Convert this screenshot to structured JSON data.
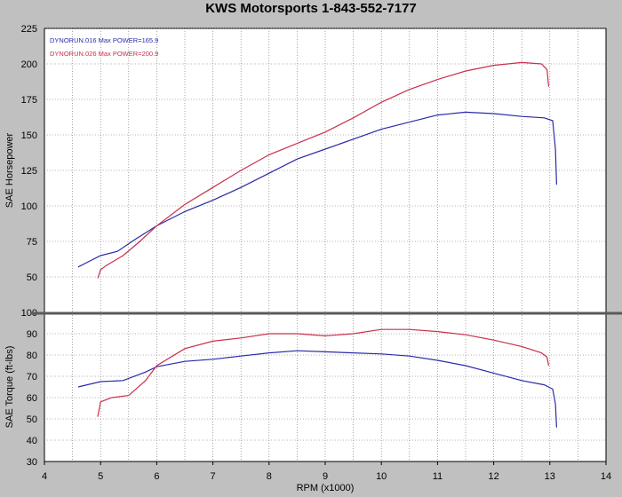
{
  "title": "KWS Motorsports  1-843-552-7177",
  "chart_data": [
    {
      "type": "line",
      "name": "horsepower",
      "ylabel": "SAE Horsepower",
      "ylim": [
        25,
        225
      ],
      "yticks": [
        50,
        75,
        100,
        125,
        150,
        175,
        200,
        225
      ],
      "xlim": [
        4,
        14
      ],
      "grid": true,
      "legend_position": "top-left",
      "series": [
        {
          "name": "DYNORUN.016  Max POWER=165.9",
          "color": "#2a2aa8",
          "x": [
            4.6,
            4.8,
            5.0,
            5.3,
            5.6,
            6.0,
            6.5,
            7.0,
            7.5,
            8.0,
            8.5,
            9.0,
            9.5,
            10.0,
            10.5,
            11.0,
            11.5,
            12.0,
            12.5,
            12.9,
            13.05,
            13.1,
            13.12
          ],
          "y": [
            57,
            61,
            65,
            68,
            76,
            86,
            96,
            104,
            113,
            123,
            133,
            140,
            147,
            154,
            159,
            164,
            166,
            165,
            163,
            162,
            160,
            140,
            115
          ]
        },
        {
          "name": "DYNORUN.026  Max POWER=200.9",
          "color": "#c8304a",
          "x": [
            4.95,
            5.0,
            5.1,
            5.4,
            5.7,
            6.0,
            6.5,
            7.0,
            7.5,
            8.0,
            8.5,
            9.0,
            9.5,
            10.0,
            10.5,
            11.0,
            11.5,
            12.0,
            12.5,
            12.85,
            12.95,
            12.98
          ],
          "y": [
            49,
            55,
            58,
            65,
            75,
            86,
            101,
            113,
            125,
            136,
            144,
            152,
            162,
            173,
            182,
            189,
            195,
            199,
            201,
            200,
            196,
            184
          ]
        }
      ]
    },
    {
      "type": "line",
      "name": "torque",
      "xlabel": "RPM (x1000)",
      "ylabel": "SAE Torque (ft-lbs)",
      "ylim": [
        30,
        100
      ],
      "yticks": [
        30,
        40,
        50,
        60,
        70,
        80,
        90,
        100
      ],
      "xlim": [
        4,
        14
      ],
      "xticks": [
        4,
        5,
        6,
        7,
        8,
        9,
        10,
        11,
        12,
        13,
        14
      ],
      "grid": true,
      "series": [
        {
          "name": "DYNORUN.016",
          "color": "#2a2aa8",
          "x": [
            4.6,
            5.0,
            5.4,
            5.8,
            6.0,
            6.5,
            7.0,
            7.5,
            8.0,
            8.5,
            9.0,
            9.5,
            10.0,
            10.5,
            11.0,
            11.5,
            12.0,
            12.5,
            12.9,
            13.05,
            13.1,
            13.12
          ],
          "y": [
            65,
            67.5,
            68,
            72,
            74.5,
            77,
            78,
            79.5,
            81,
            82,
            81.5,
            81,
            80.5,
            79.5,
            77.5,
            75,
            71.5,
            68,
            66,
            64,
            57,
            46
          ]
        },
        {
          "name": "DYNORUN.026",
          "color": "#c8304a",
          "x": [
            4.95,
            5.0,
            5.2,
            5.5,
            5.8,
            6.0,
            6.5,
            7.0,
            7.5,
            8.0,
            8.5,
            9.0,
            9.5,
            10.0,
            10.5,
            11.0,
            11.5,
            12.0,
            12.5,
            12.85,
            12.95,
            12.98
          ],
          "y": [
            51,
            58,
            60,
            61,
            68,
            75,
            83,
            86.5,
            88,
            90,
            90,
            89,
            90,
            92,
            92,
            91,
            89.5,
            87,
            84,
            81,
            79,
            75
          ]
        }
      ]
    }
  ]
}
